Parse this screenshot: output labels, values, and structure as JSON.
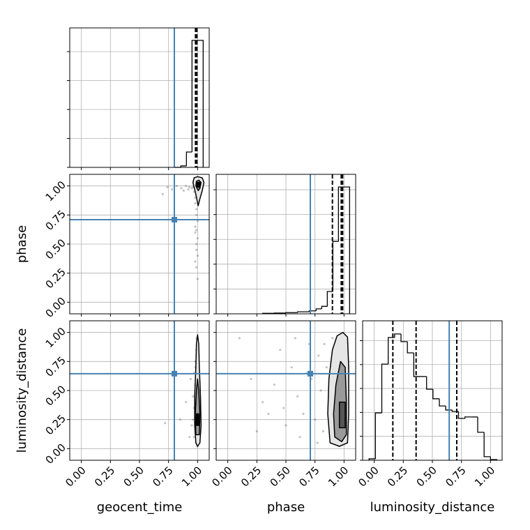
{
  "chart_data": [
    {
      "type": "histogram",
      "bins": [
        0.8,
        0.856,
        0.904,
        0.952,
        1.048
      ],
      "values": [
        0,
        0.05,
        0.53,
        4.39
      ],
      "color": "#000000",
      "quantiles": [
        0.982,
        0.994
      ],
      "truth_x": 0.8,
      "truth_color": "#4682b4",
      "xlim": [
        -0.1,
        1.1
      ],
      "ylim": [
        0,
        4.82
      ],
      "xticks": [
        {
          "value": 0,
          "label": "0.00"
        },
        {
          "value": 0.25,
          "label": "0.25"
        },
        {
          "value": 0.5,
          "label": "0.50"
        },
        {
          "value": 0.75,
          "label": "0.75"
        },
        {
          "value": 1,
          "label": "1.00"
        }
      ],
      "yticks": [
        0,
        1,
        2,
        3,
        4
      ],
      "grid": true,
      "show_xtick_labels": false,
      "show_ytick_labels": false
    },
    {
      "type": "scatter",
      "ylabel": "phase",
      "x": [
        0.97,
        0.98,
        0.99,
        1.0,
        0.96,
        0.98,
        0.99,
        1.0,
        0.97,
        0.99,
        0.98,
        1.0,
        0.95,
        0.99,
        0.98,
        0.97,
        1.0,
        0.99,
        0.93,
        0.9,
        0.86,
        0.82,
        0.78,
        0.74,
        0.7,
        0.92,
        0.88,
        0.99,
        0.98,
        1.0
      ],
      "y": [
        0.95,
        0.9,
        0.8,
        0.7,
        0.99,
        0.6,
        0.5,
        0.4,
        1.0,
        0.3,
        0.85,
        0.2,
        0.98,
        0.75,
        0.65,
        1.01,
        0.55,
        0.45,
        0.99,
        1.0,
        0.98,
        1.0,
        0.97,
        0.99,
        0.93,
        0.97,
        0.96,
        0.62,
        0.35,
        0.88
      ],
      "point_color": "#555555",
      "contours": [
        {
          "x": [
            0.96,
            0.97,
            1.0,
            1.04,
            1.055,
            1.04,
            1.02,
            1.005,
            0.995,
            0.98
          ],
          "y": [
            1.03,
            1.07,
            1.08,
            1.07,
            1.03,
            0.96,
            0.89,
            0.83,
            0.88,
            0.95
          ],
          "color": "#e6e6e6"
        },
        {
          "x": [
            0.985,
            0.99,
            1.01,
            1.03,
            1.02,
            1.005
          ],
          "y": [
            1.0,
            1.04,
            1.05,
            1.03,
            0.98,
            0.96
          ],
          "color": "#9a9a9a"
        },
        {
          "x": [
            0.995,
            0.995,
            1.02,
            1.02
          ],
          "y": [
            0.99,
            1.03,
            1.03,
            0.99
          ],
          "color": "#000000"
        }
      ],
      "truth_x": 0.8,
      "truth_y": 0.71,
      "truth_color": "#4682b4",
      "xlim": [
        -0.1,
        1.1
      ],
      "ylim": [
        -0.1,
        1.1
      ],
      "xticks": [
        {
          "value": 0,
          "label": "0.00"
        },
        {
          "value": 0.25,
          "label": "0.25"
        },
        {
          "value": 0.5,
          "label": "0.50"
        },
        {
          "value": 0.75,
          "label": "0.75"
        },
        {
          "value": 1,
          "label": "1.00"
        }
      ],
      "yticks": [
        {
          "value": 0,
          "label": "0.00"
        },
        {
          "value": 0.25,
          "label": "0.25"
        },
        {
          "value": 0.5,
          "label": "0.50"
        },
        {
          "value": 0.75,
          "label": "0.75"
        },
        {
          "value": 1,
          "label": "1.00"
        }
      ],
      "grid": true,
      "show_xtick_labels": false,
      "show_ytick_labels": true
    },
    {
      "type": "histogram",
      "bins": [
        0.3,
        0.4,
        0.5,
        0.6,
        0.7,
        0.76,
        0.808,
        0.856,
        0.904,
        0.952,
        1.048
      ],
      "values": [
        0.02,
        0.03,
        0.05,
        0.08,
        0.12,
        0.2,
        0.3,
        0.9,
        2.92,
        5.11
      ],
      "color": "#000000",
      "quantiles": [
        0.9,
        0.976,
        0.988
      ],
      "truth_x": 0.71,
      "truth_color": "#4682b4",
      "xlim": [
        -0.1,
        1.1
      ],
      "ylim": [
        0,
        5.62
      ],
      "xticks": [
        {
          "value": 0,
          "label": "0.00"
        },
        {
          "value": 0.25,
          "label": "0.25"
        },
        {
          "value": 0.5,
          "label": "0.50"
        },
        {
          "value": 0.75,
          "label": "0.75"
        },
        {
          "value": 1,
          "label": "1.00"
        }
      ],
      "yticks": [
        0,
        1,
        2,
        3,
        4,
        5
      ],
      "grid": true,
      "show_xtick_labels": false,
      "show_ytick_labels": false
    },
    {
      "type": "scatter",
      "xlabel": "geocent_time",
      "ylabel": "luminosity_distance",
      "x": [
        0.97,
        0.99,
        1.0,
        1.01,
        0.98,
        0.96,
        1.02,
        0.99,
        1.0,
        0.97,
        0.98,
        1.01,
        0.95,
        1.0,
        0.99,
        0.98,
        1.02,
        0.97,
        0.9,
        0.85,
        0.72,
        0.93,
        0.99,
        1.0,
        0.98,
        0.96,
        1.01,
        0.99,
        0.94,
        1.0
      ],
      "y": [
        0.1,
        0.2,
        0.3,
        0.15,
        0.4,
        0.25,
        0.5,
        0.6,
        0.05,
        0.35,
        0.7,
        0.8,
        0.2,
        0.9,
        0.45,
        0.55,
        0.3,
        0.65,
        0.4,
        0.25,
        0.22,
        0.1,
        0.95,
        0.02,
        0.75,
        0.45,
        0.12,
        0.85,
        0.6,
        0.35
      ],
      "point_color": "#555555",
      "contours": [
        {
          "x": [
            0.985,
            0.975,
            0.975,
            0.985,
            0.99,
            1.0,
            1.01,
            1.015,
            1.025,
            1.03,
            1.02,
            1.0
          ],
          "y": [
            0.05,
            0.2,
            0.45,
            0.7,
            0.9,
            0.98,
            0.9,
            0.7,
            0.45,
            0.2,
            0.05,
            0.02
          ],
          "color": "#e6e6e6"
        },
        {
          "x": [
            0.985,
            0.98,
            0.99,
            1.0,
            1.01,
            1.02,
            1.015
          ],
          "y": [
            0.12,
            0.3,
            0.5,
            0.6,
            0.5,
            0.3,
            0.12
          ],
          "color": "#9a9a9a"
        },
        {
          "x": [
            0.99,
            0.99,
            1.01,
            1.01
          ],
          "y": [
            0.2,
            0.3,
            0.3,
            0.2
          ],
          "color": "#000000"
        }
      ],
      "truth_x": 0.8,
      "truth_y": 0.645,
      "truth_color": "#4682b4",
      "xlim": [
        -0.1,
        1.1
      ],
      "ylim": [
        -0.1,
        1.1
      ],
      "xticks": [
        {
          "value": 0,
          "label": "0.00"
        },
        {
          "value": 0.25,
          "label": "0.25"
        },
        {
          "value": 0.5,
          "label": "0.50"
        },
        {
          "value": 0.75,
          "label": "0.75"
        },
        {
          "value": 1,
          "label": "1.00"
        }
      ],
      "yticks": [
        {
          "value": 0,
          "label": "0.00"
        },
        {
          "value": 0.25,
          "label": "0.25"
        },
        {
          "value": 0.5,
          "label": "0.50"
        },
        {
          "value": 0.75,
          "label": "0.75"
        },
        {
          "value": 1,
          "label": "1.00"
        }
      ],
      "grid": true,
      "show_xtick_labels": true,
      "show_ytick_labels": true
    },
    {
      "type": "scatter",
      "xlabel": "phase",
      "x": [
        0.1,
        0.25,
        0.3,
        0.4,
        0.45,
        0.5,
        0.55,
        0.6,
        0.62,
        0.65,
        0.7,
        0.72,
        0.75,
        0.78,
        0.8,
        0.82,
        0.85,
        0.87,
        0.9,
        0.92,
        0.95,
        0.97,
        0.99,
        1.0,
        0.35,
        0.58,
        0.68,
        0.77,
        0.88,
        0.93,
        0.2,
        0.48,
        0.83,
        0.96,
        0.99,
        0.91
      ],
      "y": [
        0.95,
        0.15,
        0.4,
        0.55,
        0.85,
        0.2,
        0.7,
        0.45,
        0.1,
        0.3,
        0.9,
        0.6,
        0.25,
        0.8,
        0.5,
        0.15,
        0.7,
        0.35,
        0.95,
        0.05,
        0.6,
        0.4,
        0.8,
        0.2,
        0.3,
        0.95,
        0.65,
        0.05,
        0.55,
        0.85,
        0.6,
        0.35,
        0.9,
        0.15,
        0.5,
        0.25
      ],
      "point_color": "#555555",
      "contours": [
        {
          "x": [
            0.88,
            0.86,
            0.87,
            0.9,
            0.94,
            0.99,
            1.03,
            1.04,
            1.04,
            1.03,
            0.96
          ],
          "y": [
            0.05,
            0.3,
            0.6,
            0.85,
            0.97,
            1.0,
            0.96,
            0.7,
            0.3,
            0.05,
            0.02
          ],
          "color": "#e6e6e6"
        },
        {
          "x": [
            0.92,
            0.91,
            0.93,
            0.97,
            1.01,
            1.02,
            1.02,
            0.98
          ],
          "y": [
            0.1,
            0.3,
            0.55,
            0.75,
            0.7,
            0.4,
            0.12,
            0.06
          ],
          "color": "#9a9a9a"
        },
        {
          "x": [
            0.96,
            0.96,
            1.01,
            1.01
          ],
          "y": [
            0.18,
            0.4,
            0.4,
            0.18
          ],
          "color": "#555555"
        }
      ],
      "truth_x": 0.71,
      "truth_y": 0.645,
      "truth_color": "#4682b4",
      "xlim": [
        -0.1,
        1.1
      ],
      "ylim": [
        -0.1,
        1.1
      ],
      "xticks": [
        {
          "value": 0,
          "label": "0.00"
        },
        {
          "value": 0.25,
          "label": "0.25"
        },
        {
          "value": 0.5,
          "label": "0.50"
        },
        {
          "value": 0.75,
          "label": "0.75"
        },
        {
          "value": 1,
          "label": "1.00"
        }
      ],
      "yticks": [
        {
          "value": 0,
          "label": "0.00"
        },
        {
          "value": 0.25,
          "label": "0.25"
        },
        {
          "value": 0.5,
          "label": "0.50"
        },
        {
          "value": 0.75,
          "label": "0.75"
        },
        {
          "value": 1,
          "label": "1.00"
        }
      ],
      "grid": true,
      "show_xtick_labels": true,
      "show_ytick_labels": false
    },
    {
      "type": "histogram",
      "xlabel": "luminosity_distance",
      "bins": [
        -0.045,
        0.01,
        0.065,
        0.12,
        0.175,
        0.23,
        0.285,
        0.34,
        0.395,
        0.45,
        0.505,
        0.56,
        0.615,
        0.67,
        0.725,
        0.78,
        0.835,
        0.89,
        0.945,
        1.0,
        1.055
      ],
      "values": [
        0.06,
        1.98,
        4.02,
        5.13,
        5.28,
        4.96,
        4.49,
        3.5,
        3.5,
        2.97,
        2.57,
        2.27,
        2.1,
        2.04,
        1.75,
        1.81,
        1.81,
        1.17,
        0.15,
        0.03
      ],
      "color": "#000000",
      "quantiles": [
        0.16,
        0.36,
        0.71
      ],
      "truth_x": 0.645,
      "truth_color": "#4682b4",
      "xlim": [
        -0.1,
        1.1
      ],
      "ylim": [
        0,
        5.83
      ],
      "xticks": [
        {
          "value": 0,
          "label": "0.00"
        },
        {
          "value": 0.25,
          "label": "0.25"
        },
        {
          "value": 0.5,
          "label": "0.50"
        },
        {
          "value": 0.75,
          "label": "0.75"
        },
        {
          "value": 1,
          "label": "1.00"
        }
      ],
      "yticks": [
        0,
        1,
        2,
        3,
        4,
        5
      ],
      "grid": true,
      "show_xtick_labels": true,
      "show_ytick_labels": false
    }
  ]
}
